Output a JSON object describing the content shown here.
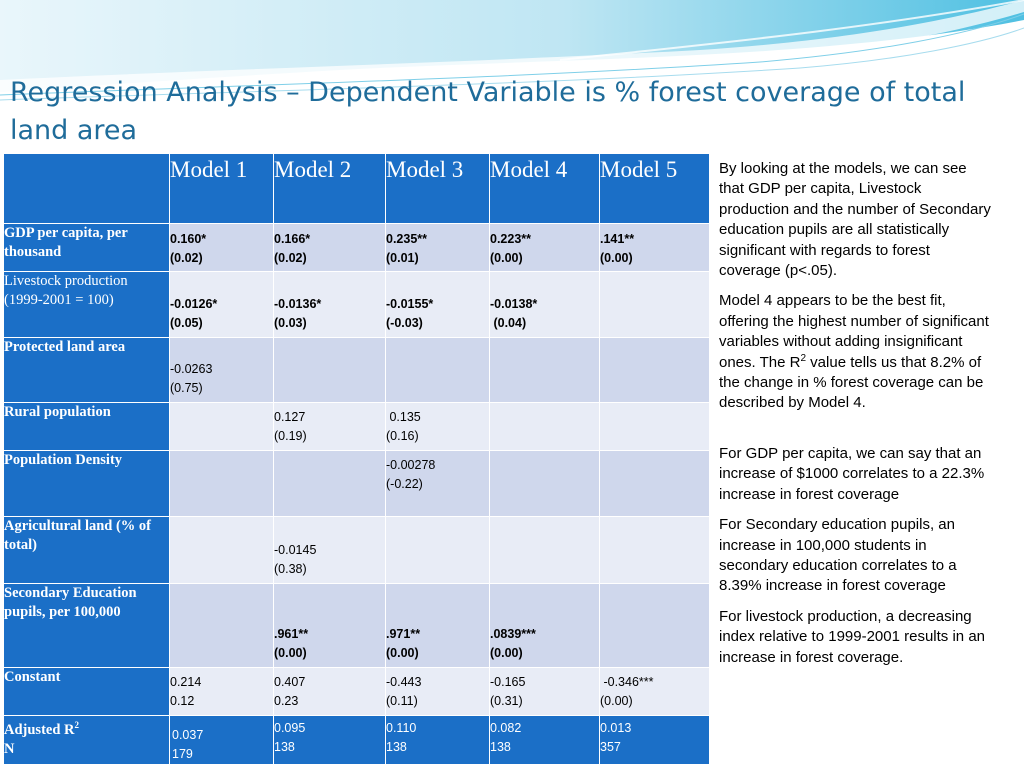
{
  "title": "Regression Analysis – Dependent Variable is % forest coverage of total land area",
  "table": {
    "headers": [
      "Model 1",
      "Model 2",
      "Model 3",
      "Model 4",
      "Model 5"
    ],
    "rows": [
      {
        "label": "GDP per capita, per thousand",
        "bold": true,
        "cells": [
          [
            "0.160*",
            "(0.02)"
          ],
          [
            "0.166*",
            "(0.02)"
          ],
          [
            "0.235**",
            "(0.01)"
          ],
          [
            "0.223**",
            "(0.00)"
          ],
          [
            ".141**",
            "(0.00)"
          ]
        ]
      },
      {
        "label": "Livestock production (1999-2001 = 100)",
        "bold": true,
        "cells": [
          [
            "-0.0126*",
            "(0.05)"
          ],
          [
            "-0.0136*",
            "(0.03)"
          ],
          [
            "-0.0155*",
            "(-0.03)"
          ],
          [
            "-0.0138*",
            " (0.04)"
          ],
          []
        ]
      },
      {
        "label": "Protected land area",
        "bold": false,
        "cells": [
          [
            "-0.0263",
            "(0.75)"
          ],
          [],
          [],
          [],
          []
        ]
      },
      {
        "label": "Rural population",
        "bold": false,
        "cells": [
          [],
          [
            "0.127",
            "(0.19)"
          ],
          [
            " 0.135",
            "(0.16)"
          ],
          [],
          []
        ]
      },
      {
        "label": "Population Density",
        "bold": false,
        "cells": [
          [],
          [],
          [
            "-0.00278",
            "(-0.22)"
          ],
          [],
          []
        ]
      },
      {
        "label": "Agricultural land (% of total)",
        "bold": false,
        "cells": [
          [],
          [
            "-0.0145",
            "(0.38)"
          ],
          [],
          [],
          []
        ]
      },
      {
        "label": "Secondary Education pupils, per 100,000",
        "bold": true,
        "cells": [
          [],
          [
            ".961**",
            "(0.00)"
          ],
          [
            ".971**",
            "(0.00)"
          ],
          [
            ".0839***",
            "(0.00)"
          ],
          []
        ]
      },
      {
        "label": "Constant",
        "bold": false,
        "cells": [
          [
            "0.214",
            "0.12"
          ],
          [
            "0.407",
            "0.23"
          ],
          [
            "-0.443",
            "(0.11)"
          ],
          [
            "-0.165",
            "(0.31)"
          ],
          [
            " -0.346***",
            "(0.00)"
          ]
        ]
      },
      {
        "label_line1": "Adjusted R",
        "label_sup": "2",
        "label_line2": "N",
        "bold": false,
        "cells": [
          [
            "0.037",
            "179"
          ],
          [
            "0.095",
            "138"
          ],
          [
            "0.110",
            "138"
          ],
          [
            "0.082",
            "138"
          ],
          [
            "0.013",
            "357"
          ]
        ]
      }
    ]
  },
  "notes": {
    "p1": "By looking at the models, we can see that GDP per capita, Livestock production and the number of Secondary education pupils are all statistically significant with regards to forest coverage (p<.05).",
    "p2_a": "Model 4 appears to be the best fit, offering the highest number of significant variables without adding insignificant ones. The R",
    "p2_sup": "2",
    "p2_b": " value tells us that 8.2% of the change in % forest coverage can be described by Model 4.",
    "p3": "For GDP per capita, we can say that an increase of $1000 correlates to a 22.3% increase in forest coverage",
    "p4": "For Secondary education pupils, an increase in 100,000 students in secondary education correlates to a 8.39% increase in forest coverage",
    "p5": "For livestock production, a decreasing index relative to 1999-2001 results in an increase in forest coverage."
  }
}
